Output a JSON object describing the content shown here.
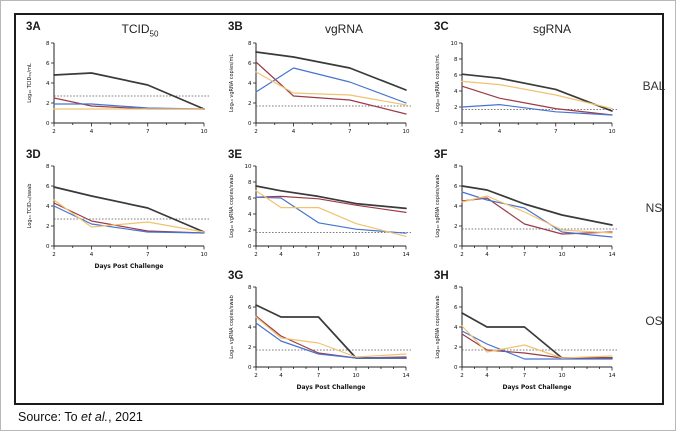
{
  "figure": {
    "column_titles": [
      {
        "main": "TCID",
        "sub": "50"
      },
      {
        "main": "vgRNA",
        "sub": ""
      },
      {
        "main": "sgRNA",
        "sub": ""
      }
    ],
    "row_labels": [
      "BAL",
      "NS",
      "OS"
    ],
    "source": {
      "prefix": "Source: To ",
      "etal": "et al.",
      "suffix": ", 2021"
    }
  },
  "colors": {
    "black": "#3a3a3a",
    "red": "#9c3b45",
    "blue": "#4673d1",
    "yellow": "#f1c26f",
    "axis": "#222222",
    "detection_line": "#555555"
  },
  "chart_data": [
    {
      "id": "3A",
      "type": "line",
      "row_group": "BAL",
      "ylabel": "Log₁₀ TCID₅₀/mL",
      "xlabel": "",
      "x": [
        2,
        4,
        7,
        10
      ],
      "xrange": [
        2,
        10
      ],
      "ylim": [
        0,
        8
      ],
      "ytick_step": 2,
      "detection_limit": 2.7,
      "series": [
        {
          "name": "black",
          "color": "#3a3a3a",
          "values": [
            4.8,
            5.0,
            3.8,
            1.4
          ]
        },
        {
          "name": "red",
          "color": "#9c3b45",
          "values": [
            2.5,
            1.7,
            1.4,
            1.4
          ]
        },
        {
          "name": "blue",
          "color": "#4673d1",
          "values": [
            1.9,
            1.9,
            1.5,
            1.4
          ]
        },
        {
          "name": "yellow",
          "color": "#f1c26f",
          "values": [
            1.4,
            1.4,
            1.4,
            1.4
          ]
        }
      ]
    },
    {
      "id": "3B",
      "type": "line",
      "row_group": "BAL",
      "ylabel": "Log₁₀ vgRNA copies/mL",
      "xlabel": "",
      "x": [
        2,
        4,
        7,
        10
      ],
      "xrange": [
        2,
        10
      ],
      "ylim": [
        0,
        8
      ],
      "ytick_step": 2,
      "detection_limit": 1.7,
      "series": [
        {
          "name": "black",
          "color": "#3a3a3a",
          "values": [
            7.1,
            6.6,
            5.5,
            3.3
          ]
        },
        {
          "name": "red",
          "color": "#9c3b45",
          "values": [
            6.1,
            2.7,
            2.3,
            0.9
          ]
        },
        {
          "name": "blue",
          "color": "#4673d1",
          "values": [
            3.1,
            5.5,
            4.1,
            2.0
          ]
        },
        {
          "name": "yellow",
          "color": "#f1c26f",
          "values": [
            5.1,
            3.0,
            2.8,
            1.8
          ]
        }
      ]
    },
    {
      "id": "3C",
      "type": "line",
      "row_group": "BAL",
      "ylabel": "Log₁₀ sgRNA copies/mL",
      "xlabel": "",
      "x": [
        2,
        4,
        7,
        10
      ],
      "xrange": [
        2,
        10
      ],
      "ylim": [
        0,
        10
      ],
      "ytick_step": 2,
      "detection_limit": 1.7,
      "series": [
        {
          "name": "black",
          "color": "#3a3a3a",
          "values": [
            6.1,
            5.6,
            4.2,
            1.5
          ]
        },
        {
          "name": "red",
          "color": "#9c3b45",
          "values": [
            4.6,
            3.1,
            1.8,
            1.0
          ]
        },
        {
          "name": "blue",
          "color": "#4673d1",
          "values": [
            2.0,
            2.3,
            1.4,
            1.0
          ]
        },
        {
          "name": "yellow",
          "color": "#f1c26f",
          "values": [
            5.2,
            4.8,
            3.5,
            1.8
          ]
        }
      ]
    },
    {
      "id": "3D",
      "type": "line",
      "row_group": "NS",
      "ylabel": "Log₁₀ TCID₅₀/swab",
      "xlabel": "Days Post Challenge",
      "x": [
        2,
        4,
        7,
        10
      ],
      "xrange": [
        2,
        10
      ],
      "ylim": [
        0,
        8
      ],
      "ytick_step": 2,
      "detection_limit": 2.7,
      "series": [
        {
          "name": "black",
          "color": "#3a3a3a",
          "values": [
            5.9,
            5.0,
            3.8,
            1.4
          ]
        },
        {
          "name": "red",
          "color": "#9c3b45",
          "values": [
            4.3,
            2.5,
            1.5,
            1.3
          ]
        },
        {
          "name": "blue",
          "color": "#4673d1",
          "values": [
            4.0,
            2.2,
            1.4,
            1.3
          ]
        },
        {
          "name": "yellow",
          "color": "#f1c26f",
          "values": [
            4.6,
            1.9,
            2.4,
            1.4
          ]
        }
      ]
    },
    {
      "id": "3E",
      "type": "line",
      "row_group": "NS",
      "ylabel": "Log₁₀ vgRNA copies/swab",
      "xlabel": "",
      "x": [
        2,
        4,
        7,
        10,
        14
      ],
      "xrange": [
        2,
        14
      ],
      "ylim": [
        0,
        10
      ],
      "ytick_step": 2,
      "detection_limit": 1.7,
      "series": [
        {
          "name": "black",
          "color": "#3a3a3a",
          "values": [
            7.5,
            6.9,
            6.2,
            5.3,
            4.7
          ]
        },
        {
          "name": "red",
          "color": "#9c3b45",
          "values": [
            6.1,
            6.2,
            5.9,
            5.1,
            4.2
          ]
        },
        {
          "name": "blue",
          "color": "#4673d1",
          "values": [
            6.1,
            6.0,
            2.9,
            2.1,
            1.6
          ]
        },
        {
          "name": "yellow",
          "color": "#f1c26f",
          "values": [
            6.9,
            4.8,
            4.8,
            2.8,
            1.2
          ]
        }
      ]
    },
    {
      "id": "3F",
      "type": "line",
      "row_group": "NS",
      "ylabel": "Log₁₀ sgRNA copies/swab",
      "xlabel": "",
      "x": [
        2,
        4,
        7,
        10,
        14
      ],
      "xrange": [
        2,
        14
      ],
      "ylim": [
        0,
        8
      ],
      "ytick_step": 2,
      "detection_limit": 1.7,
      "series": [
        {
          "name": "black",
          "color": "#3a3a3a",
          "values": [
            6.0,
            5.6,
            4.2,
            3.1,
            2.1
          ]
        },
        {
          "name": "red",
          "color": "#9c3b45",
          "values": [
            4.5,
            4.8,
            2.2,
            1.2,
            1.4
          ]
        },
        {
          "name": "blue",
          "color": "#4673d1",
          "values": [
            5.4,
            4.6,
            3.8,
            1.4,
            0.9
          ]
        },
        {
          "name": "yellow",
          "color": "#f1c26f",
          "values": [
            4.4,
            5.0,
            3.4,
            1.6,
            1.3
          ]
        }
      ]
    },
    {
      "id": "3G",
      "type": "line",
      "row_group": "OS",
      "ylabel": "Log₁₀ vgRNA copies/swab",
      "xlabel": "Days Post Challenge",
      "x": [
        2,
        4,
        7,
        10,
        14
      ],
      "xrange": [
        2,
        14
      ],
      "ylim": [
        0,
        8
      ],
      "ytick_step": 2,
      "detection_limit": 1.7,
      "series": [
        {
          "name": "black",
          "color": "#3a3a3a",
          "values": [
            6.2,
            5.0,
            5.0,
            0.9,
            0.9
          ]
        },
        {
          "name": "red",
          "color": "#9c3b45",
          "values": [
            5.1,
            3.1,
            1.4,
            0.9,
            1.0
          ]
        },
        {
          "name": "blue",
          "color": "#4673d1",
          "values": [
            4.4,
            2.6,
            1.3,
            0.9,
            0.9
          ]
        },
        {
          "name": "yellow",
          "color": "#f1c26f",
          "values": [
            5.0,
            2.9,
            2.4,
            1.0,
            1.3
          ]
        }
      ]
    },
    {
      "id": "3H",
      "type": "line",
      "row_group": "OS",
      "ylabel": "Log₁₀ sgRNA copies/swab",
      "xlabel": "Days Post Challenge",
      "x": [
        2,
        4,
        7,
        10,
        14
      ],
      "xrange": [
        2,
        14
      ],
      "ylim": [
        0,
        8
      ],
      "ytick_step": 2,
      "detection_limit": 1.7,
      "series": [
        {
          "name": "black",
          "color": "#3a3a3a",
          "values": [
            5.4,
            4.0,
            4.0,
            0.9,
            0.9
          ]
        },
        {
          "name": "red",
          "color": "#9c3b45",
          "values": [
            3.3,
            1.7,
            1.4,
            0.9,
            0.9
          ]
        },
        {
          "name": "blue",
          "color": "#4673d1",
          "values": [
            3.6,
            2.3,
            0.8,
            0.8,
            0.8
          ]
        },
        {
          "name": "yellow",
          "color": "#f1c26f",
          "values": [
            4.1,
            1.5,
            2.2,
            0.9,
            1.1
          ]
        }
      ]
    }
  ]
}
